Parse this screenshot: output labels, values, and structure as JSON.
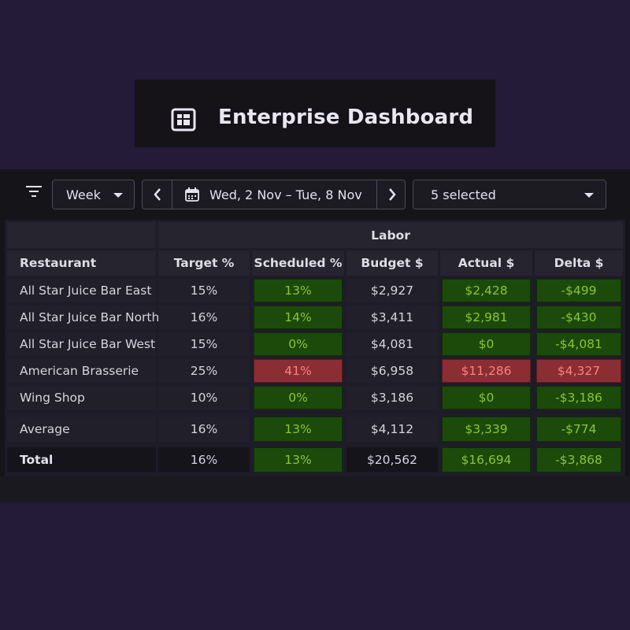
{
  "header": {
    "title": "Enterprise Dashboard",
    "icon": "dashboard-icon"
  },
  "toolbar": {
    "period": "Week",
    "date_range": "Wed, 2 Nov  –  Tue, 8 Nov",
    "selection": "5 selected"
  },
  "table": {
    "group_header": "Labor",
    "columns": [
      "Restaurant",
      "Target %",
      "Scheduled %",
      "Budget $",
      "Actual $",
      "Delta $"
    ],
    "rows": [
      {
        "restaurant": "All Star Juice Bar East",
        "target": "15%",
        "scheduled": "13%",
        "budget": "$2,927",
        "actual": "$2,428",
        "delta": "-$499",
        "status": "good"
      },
      {
        "restaurant": "All Star Juice Bar North",
        "target": "16%",
        "scheduled": "14%",
        "budget": "$3,411",
        "actual": "$2,981",
        "delta": "-$430",
        "status": "good"
      },
      {
        "restaurant": "All Star Juice Bar West",
        "target": "15%",
        "scheduled": "0%",
        "budget": "$4,081",
        "actual": "$0",
        "delta": "-$4,081",
        "status": "good"
      },
      {
        "restaurant": "American Brasserie",
        "target": "25%",
        "scheduled": "41%",
        "budget": "$6,958",
        "actual": "$11,286",
        "delta": "$4,327",
        "status": "bad"
      },
      {
        "restaurant": "Wing Shop",
        "target": "10%",
        "scheduled": "0%",
        "budget": "$3,186",
        "actual": "$0",
        "delta": "-$3,186",
        "status": "good"
      }
    ],
    "average": {
      "restaurant": "Average",
      "target": "16%",
      "scheduled": "13%",
      "budget": "$4,112",
      "actual": "$3,339",
      "delta": "-$774"
    },
    "total": {
      "restaurant": "Total",
      "target": "16%",
      "scheduled": "13%",
      "budget": "$20,562",
      "actual": "$16,694",
      "delta": "-$3,868"
    }
  },
  "colors": {
    "good": "#1c4a0b",
    "good_text": "#86c63a",
    "bad": "#8a2e33",
    "bad_text": "#ff7f80",
    "background": "#231b38"
  }
}
